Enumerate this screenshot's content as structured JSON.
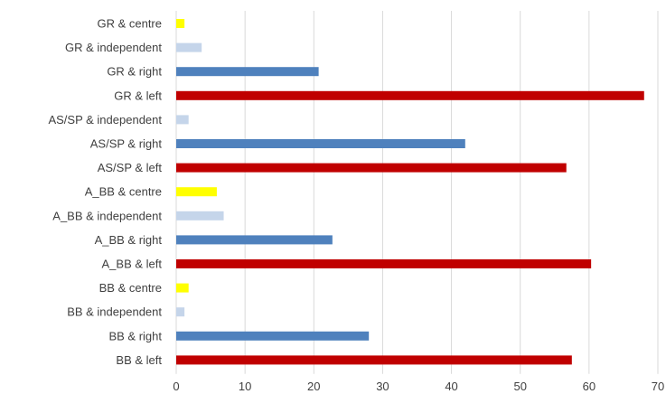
{
  "chart_data": {
    "type": "bar",
    "orientation": "horizontal",
    "title": "",
    "xlabel": "",
    "ylabel": "",
    "grid": true,
    "legend": "none",
    "xlim": [
      0,
      70
    ],
    "x_ticks": [
      0,
      10,
      20,
      30,
      40,
      50,
      60,
      70
    ],
    "categories": [
      "GR & centre",
      "GR & independent",
      "GR & right",
      "GR & left",
      "AS/SP & independent",
      "AS/SP & right",
      "AS/SP & left",
      "A_BB & centre",
      "A_BB & independent",
      "A_BB & right",
      "A_BB & left",
      "BB & centre",
      "BB & independent",
      "BB & right",
      "BB & left"
    ],
    "values": [
      1.2,
      3.7,
      20.7,
      68.0,
      1.8,
      42.0,
      56.7,
      5.9,
      6.9,
      22.7,
      60.3,
      1.8,
      1.2,
      28.0,
      57.5
    ],
    "bar_colors": [
      "#ffff00",
      "#c5d5ea",
      "#4f81bd",
      "#c00000",
      "#c5d5ea",
      "#4f81bd",
      "#c00000",
      "#ffff00",
      "#c5d5ea",
      "#4f81bd",
      "#c00000",
      "#ffff00",
      "#c5d5ea",
      "#4f81bd",
      "#c00000"
    ],
    "colors": {
      "left": "#c00000",
      "right": "#4f81bd",
      "independent": "#c5d5ea",
      "centre": "#ffff00",
      "gridline": "#d9d9d9",
      "text": "#404040"
    }
  }
}
